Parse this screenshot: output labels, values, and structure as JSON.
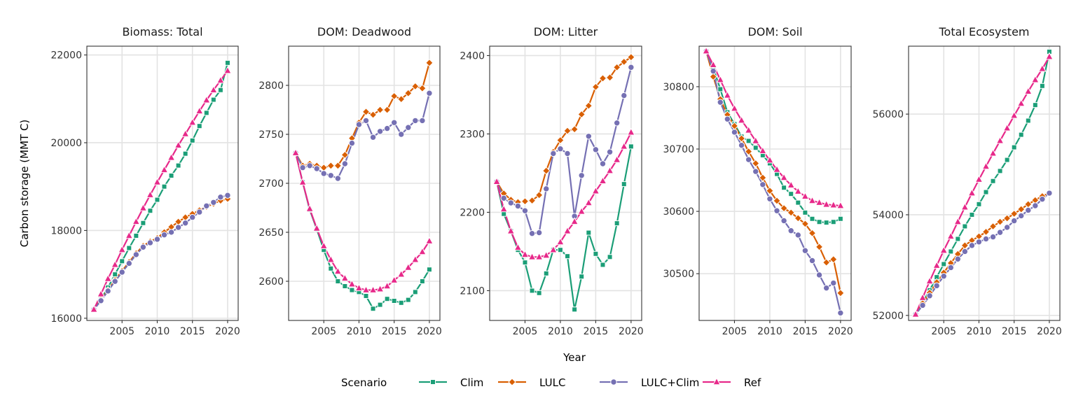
{
  "chart_data": {
    "type": "line",
    "xlabel": "Year",
    "ylabel": "Carbon storage (MMT C)",
    "legend": {
      "title": "Scenario",
      "position": "bottom"
    },
    "series_styles": [
      {
        "name": "Clim",
        "color": "#1b9e77",
        "marker": "square"
      },
      {
        "name": "LULC",
        "color": "#d95f02",
        "marker": "diamond"
      },
      {
        "name": "LULC+Clim",
        "color": "#7570b3",
        "marker": "circle"
      },
      {
        "name": "Ref",
        "color": "#e7298a",
        "marker": "triangle"
      }
    ],
    "x": [
      2001,
      2002,
      2003,
      2004,
      2005,
      2006,
      2007,
      2008,
      2009,
      2010,
      2011,
      2012,
      2013,
      2014,
      2015,
      2016,
      2017,
      2018,
      2019,
      2020
    ],
    "xlim": [
      2000,
      2021.5
    ],
    "xticks": [
      2005,
      2010,
      2015,
      2020
    ],
    "grid": true,
    "panels": [
      {
        "title": "Biomass: Total",
        "ylim": [
          15950,
          22200
        ],
        "yticks": [
          16000,
          18000,
          20000,
          22000
        ],
        "series": [
          {
            "name": "Clim",
            "values": [
              16200,
              16430,
              16700,
              17000,
              17300,
              17600,
              17880,
              18170,
              18450,
              18700,
              19000,
              19250,
              19480,
              19750,
              20050,
              20380,
              20680,
              20980,
              21200,
              21820
            ]
          },
          {
            "name": "LULC",
            "values": [
              16200,
              16420,
              16640,
              16870,
              17080,
              17280,
              17480,
              17650,
              17750,
              17830,
              17960,
              18080,
              18200,
              18300,
              18380,
              18460,
              18540,
              18610,
              18680,
              18720
            ]
          },
          {
            "name": "LULC+Clim",
            "values": [
              16200,
              16400,
              16620,
              16840,
              17050,
              17250,
              17450,
              17620,
              17720,
              17800,
              17900,
              17960,
              18070,
              18170,
              18300,
              18420,
              18560,
              18640,
              18760,
              18800
            ]
          },
          {
            "name": "Ref",
            "values": [
              16200,
              16550,
              16900,
              17220,
              17560,
              17880,
              18200,
              18510,
              18810,
              19100,
              19380,
              19660,
              19940,
              20200,
              20460,
              20720,
              20970,
              21200,
              21420,
              21640
            ]
          }
        ]
      },
      {
        "title": "DOM: Deadwood",
        "ylim": [
          2560,
          2840
        ],
        "yticks": [
          2600,
          2650,
          2700,
          2750,
          2800
        ],
        "series": [
          {
            "name": "Clim",
            "values": [
              2731,
              2701,
              2673,
              2653,
              2632,
              2613,
              2600,
              2595,
              2591,
              2589,
              2585,
              2572,
              2576,
              2582,
              2580,
              2578,
              2581,
              2589,
              2600,
              2612
            ]
          },
          {
            "name": "LULC",
            "values": [
              2731,
              2718,
              2720,
              2718,
              2716,
              2718,
              2718,
              2729,
              2746,
              2762,
              2773,
              2770,
              2775,
              2775,
              2789,
              2786,
              2792,
              2799,
              2797,
              2823
            ]
          },
          {
            "name": "LULC+Clim",
            "values": [
              2731,
              2716,
              2718,
              2715,
              2710,
              2708,
              2705,
              2720,
              2741,
              2760,
              2764,
              2747,
              2753,
              2756,
              2762,
              2750,
              2757,
              2764,
              2764,
              2792
            ]
          },
          {
            "name": "Ref",
            "values": [
              2731,
              2701,
              2674,
              2654,
              2636,
              2622,
              2610,
              2603,
              2597,
              2593,
              2591,
              2591,
              2592,
              2595,
              2601,
              2607,
              2614,
              2622,
              2630,
              2641
            ]
          }
        ]
      },
      {
        "title": "DOM: Litter",
        "ylim": [
          2062,
          2412
        ],
        "yticks": [
          2100,
          2200,
          2300,
          2400
        ],
        "series": [
          {
            "name": "Clim",
            "values": [
              2239,
              2198,
              2176,
              2152,
              2136,
              2100,
              2097,
              2122,
              2152,
              2152,
              2144,
              2076,
              2118,
              2174,
              2147,
              2133,
              2143,
              2186,
              2236,
              2284
            ]
          },
          {
            "name": "LULC",
            "values": [
              2239,
              2224,
              2216,
              2213,
              2214,
              2215,
              2222,
              2253,
              2277,
              2292,
              2304,
              2306,
              2325,
              2336,
              2360,
              2371,
              2372,
              2385,
              2392,
              2398
            ]
          },
          {
            "name": "LULC+Clim",
            "values": [
              2239,
              2218,
              2212,
              2208,
              2202,
              2173,
              2174,
              2230,
              2275,
              2281,
              2275,
              2195,
              2247,
              2297,
              2280,
              2262,
              2277,
              2314,
              2349,
              2385
            ]
          },
          {
            "name": "Ref",
            "values": [
              2239,
              2204,
              2176,
              2155,
              2146,
              2143,
              2143,
              2145,
              2152,
              2162,
              2176,
              2188,
              2201,
              2212,
              2227,
              2240,
              2253,
              2267,
              2284,
              2302
            ]
          }
        ]
      },
      {
        "title": "DOM: Soil",
        "ylim": [
          30425,
          30865
        ],
        "yticks": [
          30500,
          30600,
          30700,
          30800
        ],
        "series": [
          {
            "name": "Clim",
            "values": [
              30857,
              30830,
              30796,
              30759,
              30740,
              30720,
              30713,
              30702,
              30690,
              30677,
              30660,
              30638,
              30628,
              30614,
              30598,
              30588,
              30583,
              30582,
              30583,
              30588
            ]
          },
          {
            "name": "LULC",
            "values": [
              30857,
              30816,
              30780,
              30755,
              30737,
              30717,
              30696,
              30677,
              30654,
              30633,
              30617,
              30605,
              30598,
              30589,
              30580,
              30565,
              30543,
              30518,
              30523,
              30469
            ]
          },
          {
            "name": "LULC+Clim",
            "values": [
              30857,
              30825,
              30775,
              30748,
              30727,
              30706,
              30683,
              30664,
              30643,
              30620,
              30601,
              30585,
              30569,
              30562,
              30537,
              30521,
              30498,
              30477,
              30485,
              30437
            ]
          },
          {
            "name": "Ref",
            "values": [
              30857,
              30835,
              30811,
              30786,
              30765,
              30746,
              30730,
              30713,
              30697,
              30682,
              30667,
              30654,
              30642,
              30632,
              30624,
              30617,
              30614,
              30611,
              30610,
              30609
            ]
          }
        ]
      },
      {
        "title": "Total Ecosystem",
        "ylim": [
          51900,
          57350
        ],
        "yticks": [
          52000,
          54000,
          56000
        ],
        "series": [
          {
            "name": "Clim",
            "values": [
              52020,
              52260,
              52500,
              52760,
              53020,
              53270,
              53520,
              53770,
              54000,
              54210,
              54450,
              54670,
              54870,
              55090,
              55340,
              55590,
              55870,
              56180,
              56560,
              57240
            ]
          },
          {
            "name": "LULC",
            "values": [
              52020,
              52240,
              52450,
              52660,
              52850,
              53040,
              53220,
              53390,
              53490,
              53570,
              53660,
              53770,
              53860,
              53930,
              54020,
              54110,
              54210,
              54290,
              54370,
              54430
            ]
          },
          {
            "name": "LULC+Clim",
            "values": [
              52020,
              52200,
              52390,
              52590,
              52780,
              52950,
              53120,
              53270,
              53390,
              53460,
              53520,
              53560,
              53650,
              53750,
              53880,
              53980,
              54090,
              54180,
              54310,
              54430
            ]
          },
          {
            "name": "Ref",
            "values": [
              52020,
              52350,
              52680,
              52990,
              53290,
              53570,
              53860,
              54150,
              54430,
              54700,
              54960,
              55220,
              55470,
              55720,
              55970,
              56210,
              56450,
              56680,
              56900,
              57140
            ]
          }
        ]
      }
    ]
  }
}
